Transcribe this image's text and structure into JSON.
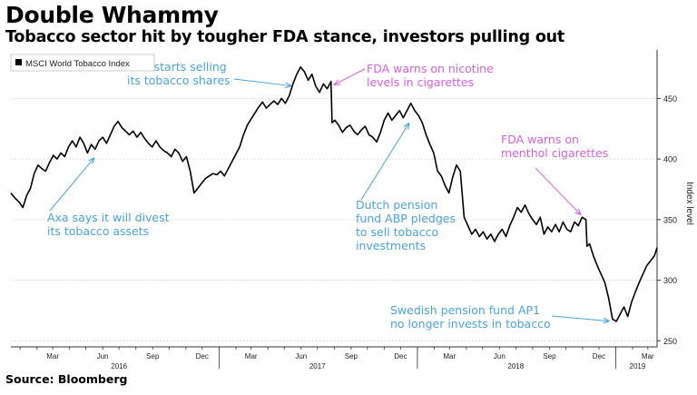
{
  "header": {
    "title": "Double Whammy",
    "subtitle": "Tobacco sector hit by tougher FDA stance, investors pulling out"
  },
  "footer": {
    "source": "Source: Bloomberg"
  },
  "colors": {
    "line": "#000000",
    "blue": "#4aa3df",
    "magenta": "#d95fe0",
    "axis": "#333333"
  },
  "chart_data": {
    "type": "line",
    "legend": {
      "label": "MSCI World Tobacco Index",
      "position": "top-left"
    },
    "ylabel": "Index level",
    "ylim": [
      245,
      490
    ],
    "yticks": [
      250,
      300,
      350,
      400,
      450
    ],
    "x_start": "2015-12-15",
    "x_end": "2019-03-18",
    "month_ticks": [
      {
        "label": "Mar",
        "date": "2016-03-01"
      },
      {
        "label": "Jun",
        "date": "2016-06-01"
      },
      {
        "label": "Sep",
        "date": "2016-09-01"
      },
      {
        "label": "Dec",
        "date": "2016-12-01"
      },
      {
        "label": "Mar",
        "date": "2017-03-01"
      },
      {
        "label": "Jun",
        "date": "2017-06-01"
      },
      {
        "label": "Sep",
        "date": "2017-09-01"
      },
      {
        "label": "Dec",
        "date": "2017-12-01"
      },
      {
        "label": "Mar",
        "date": "2018-03-01"
      },
      {
        "label": "Jun",
        "date": "2018-06-01"
      },
      {
        "label": "Sep",
        "date": "2018-09-01"
      },
      {
        "label": "Dec",
        "date": "2018-12-01"
      },
      {
        "label": "Mar",
        "date": "2019-03-01"
      }
    ],
    "year_labels": [
      {
        "label": "2016",
        "date": "2016-07-01"
      },
      {
        "label": "2017",
        "date": "2017-07-01"
      },
      {
        "label": "2018",
        "date": "2018-07-01"
      },
      {
        "label": "2019",
        "date": "2019-02-10"
      }
    ],
    "year_separators": [
      "2017-01-01",
      "2018-01-01",
      "2019-01-01"
    ],
    "series": [
      {
        "name": "MSCI World Tobacco Index",
        "points": [
          [
            "2015-12-15",
            372
          ],
          [
            "2015-12-22",
            368
          ],
          [
            "2015-12-31",
            364
          ],
          [
            "2016-01-06",
            360
          ],
          [
            "2016-01-13",
            370
          ],
          [
            "2016-01-20",
            376
          ],
          [
            "2016-01-27",
            388
          ],
          [
            "2016-02-03",
            395
          ],
          [
            "2016-02-10",
            392
          ],
          [
            "2016-02-17",
            390
          ],
          [
            "2016-02-24",
            397
          ],
          [
            "2016-03-02",
            403
          ],
          [
            "2016-03-09",
            400
          ],
          [
            "2016-03-16",
            405
          ],
          [
            "2016-03-23",
            402
          ],
          [
            "2016-03-30",
            410
          ],
          [
            "2016-04-06",
            415
          ],
          [
            "2016-04-13",
            410
          ],
          [
            "2016-04-20",
            418
          ],
          [
            "2016-04-27",
            413
          ],
          [
            "2016-05-04",
            405
          ],
          [
            "2016-05-11",
            412
          ],
          [
            "2016-05-18",
            408
          ],
          [
            "2016-05-25",
            415
          ],
          [
            "2016-06-01",
            418
          ],
          [
            "2016-06-08",
            413
          ],
          [
            "2016-06-15",
            420
          ],
          [
            "2016-06-22",
            427
          ],
          [
            "2016-06-29",
            431
          ],
          [
            "2016-07-06",
            426
          ],
          [
            "2016-07-13",
            423
          ],
          [
            "2016-07-20",
            420
          ],
          [
            "2016-07-27",
            423
          ],
          [
            "2016-08-03",
            418
          ],
          [
            "2016-08-10",
            422
          ],
          [
            "2016-08-17",
            417
          ],
          [
            "2016-08-24",
            413
          ],
          [
            "2016-08-31",
            410
          ],
          [
            "2016-09-07",
            415
          ],
          [
            "2016-09-14",
            410
          ],
          [
            "2016-09-21",
            407
          ],
          [
            "2016-09-28",
            405
          ],
          [
            "2016-10-05",
            402
          ],
          [
            "2016-10-12",
            408
          ],
          [
            "2016-10-19",
            405
          ],
          [
            "2016-10-26",
            398
          ],
          [
            "2016-11-02",
            402
          ],
          [
            "2016-11-09",
            390
          ],
          [
            "2016-11-16",
            372
          ],
          [
            "2016-11-23",
            376
          ],
          [
            "2016-11-30",
            380
          ],
          [
            "2016-12-07",
            384
          ],
          [
            "2016-12-14",
            386
          ],
          [
            "2016-12-21",
            388
          ],
          [
            "2016-12-28",
            387
          ],
          [
            "2017-01-04",
            390
          ],
          [
            "2017-01-11",
            386
          ],
          [
            "2017-01-18",
            392
          ],
          [
            "2017-01-25",
            398
          ],
          [
            "2017-02-01",
            404
          ],
          [
            "2017-02-08",
            410
          ],
          [
            "2017-02-15",
            420
          ],
          [
            "2017-02-22",
            428
          ],
          [
            "2017-03-01",
            433
          ],
          [
            "2017-03-08",
            438
          ],
          [
            "2017-03-15",
            443
          ],
          [
            "2017-03-22",
            447
          ],
          [
            "2017-03-29",
            442
          ],
          [
            "2017-04-05",
            445
          ],
          [
            "2017-04-12",
            448
          ],
          [
            "2017-04-19",
            445
          ],
          [
            "2017-04-26",
            450
          ],
          [
            "2017-05-03",
            446
          ],
          [
            "2017-05-10",
            452
          ],
          [
            "2017-05-17",
            462
          ],
          [
            "2017-05-24",
            470
          ],
          [
            "2017-05-31",
            476
          ],
          [
            "2017-06-07",
            472
          ],
          [
            "2017-06-14",
            465
          ],
          [
            "2017-06-21",
            470
          ],
          [
            "2017-06-28",
            460
          ],
          [
            "2017-07-05",
            455
          ],
          [
            "2017-07-12",
            462
          ],
          [
            "2017-07-19",
            458
          ],
          [
            "2017-07-26",
            464
          ],
          [
            "2017-07-28",
            430
          ],
          [
            "2017-08-02",
            432
          ],
          [
            "2017-08-09",
            428
          ],
          [
            "2017-08-16",
            422
          ],
          [
            "2017-08-23",
            426
          ],
          [
            "2017-08-30",
            428
          ],
          [
            "2017-09-06",
            423
          ],
          [
            "2017-09-13",
            420
          ],
          [
            "2017-09-20",
            424
          ],
          [
            "2017-09-27",
            427
          ],
          [
            "2017-10-04",
            420
          ],
          [
            "2017-10-11",
            418
          ],
          [
            "2017-10-18",
            414
          ],
          [
            "2017-10-25",
            422
          ],
          [
            "2017-11-01",
            432
          ],
          [
            "2017-11-08",
            438
          ],
          [
            "2017-11-15",
            432
          ],
          [
            "2017-11-22",
            436
          ],
          [
            "2017-11-29",
            440
          ],
          [
            "2017-12-06",
            434
          ],
          [
            "2017-12-13",
            440
          ],
          [
            "2017-12-20",
            446
          ],
          [
            "2017-12-27",
            440
          ],
          [
            "2018-01-03",
            436
          ],
          [
            "2018-01-10",
            430
          ],
          [
            "2018-01-17",
            420
          ],
          [
            "2018-01-24",
            412
          ],
          [
            "2018-01-31",
            405
          ],
          [
            "2018-02-07",
            390
          ],
          [
            "2018-02-14",
            386
          ],
          [
            "2018-02-21",
            378
          ],
          [
            "2018-02-28",
            372
          ],
          [
            "2018-03-07",
            385
          ],
          [
            "2018-03-14",
            395
          ],
          [
            "2018-03-21",
            390
          ],
          [
            "2018-03-28",
            352
          ],
          [
            "2018-04-04",
            345
          ],
          [
            "2018-04-11",
            338
          ],
          [
            "2018-04-18",
            342
          ],
          [
            "2018-04-25",
            336
          ],
          [
            "2018-05-02",
            340
          ],
          [
            "2018-05-09",
            334
          ],
          [
            "2018-05-16",
            338
          ],
          [
            "2018-05-23",
            332
          ],
          [
            "2018-05-30",
            338
          ],
          [
            "2018-06-06",
            342
          ],
          [
            "2018-06-13",
            336
          ],
          [
            "2018-06-20",
            345
          ],
          [
            "2018-06-27",
            352
          ],
          [
            "2018-07-04",
            360
          ],
          [
            "2018-07-11",
            356
          ],
          [
            "2018-07-18",
            362
          ],
          [
            "2018-07-25",
            355
          ],
          [
            "2018-08-01",
            350
          ],
          [
            "2018-08-08",
            346
          ],
          [
            "2018-08-15",
            352
          ],
          [
            "2018-08-22",
            338
          ],
          [
            "2018-08-29",
            344
          ],
          [
            "2018-09-05",
            340
          ],
          [
            "2018-09-12",
            346
          ],
          [
            "2018-09-19",
            340
          ],
          [
            "2018-09-26",
            348
          ],
          [
            "2018-10-03",
            342
          ],
          [
            "2018-10-10",
            340
          ],
          [
            "2018-10-17",
            348
          ],
          [
            "2018-10-24",
            345
          ],
          [
            "2018-10-31",
            352
          ],
          [
            "2018-11-07",
            350
          ],
          [
            "2018-11-09",
            328
          ],
          [
            "2018-11-14",
            330
          ],
          [
            "2018-11-21",
            320
          ],
          [
            "2018-11-28",
            312
          ],
          [
            "2018-12-05",
            305
          ],
          [
            "2018-12-12",
            298
          ],
          [
            "2018-12-19",
            285
          ],
          [
            "2018-12-26",
            268
          ],
          [
            "2019-01-02",
            266
          ],
          [
            "2019-01-09",
            272
          ],
          [
            "2019-01-16",
            278
          ],
          [
            "2019-01-23",
            270
          ],
          [
            "2019-01-30",
            282
          ],
          [
            "2019-02-06",
            290
          ],
          [
            "2019-02-13",
            298
          ],
          [
            "2019-02-20",
            305
          ],
          [
            "2019-02-27",
            312
          ],
          [
            "2019-03-06",
            316
          ],
          [
            "2019-03-13",
            320
          ],
          [
            "2019-03-18",
            327
          ]
        ]
      }
    ],
    "annotations": [
      {
        "id": "axa-divest",
        "color": "blue",
        "lines": [
          "Axa says it will divest",
          "its tobacco assets"
        ],
        "date": "2016-05-20",
        "value": 403
      },
      {
        "id": "axa-selling",
        "color": "blue",
        "lines": [
          "AXA starts selling",
          "its tobacco shares"
        ],
        "date": "2017-05-20",
        "value": 460
      },
      {
        "id": "fda-nicotine",
        "color": "magenta",
        "lines": [
          "FDA warns on nicotine",
          "levels in cigarettes"
        ],
        "date": "2017-07-26",
        "value": 460
      },
      {
        "id": "abp-pledge",
        "color": "blue",
        "lines": [
          "Dutch pension",
          "fund ABP pledges",
          "to sell tobacco",
          "investments"
        ],
        "date": "2017-12-20",
        "value": 432
      },
      {
        "id": "fda-menthol",
        "color": "magenta",
        "lines": [
          "FDA warns on",
          "menthol cigarettes"
        ],
        "date": "2018-11-02",
        "value": 352
      },
      {
        "id": "ap1",
        "color": "blue",
        "lines": [
          "Swedish pension fund AP1",
          "no longer invests in tobacco"
        ],
        "date": "2018-12-26",
        "value": 266
      }
    ]
  }
}
